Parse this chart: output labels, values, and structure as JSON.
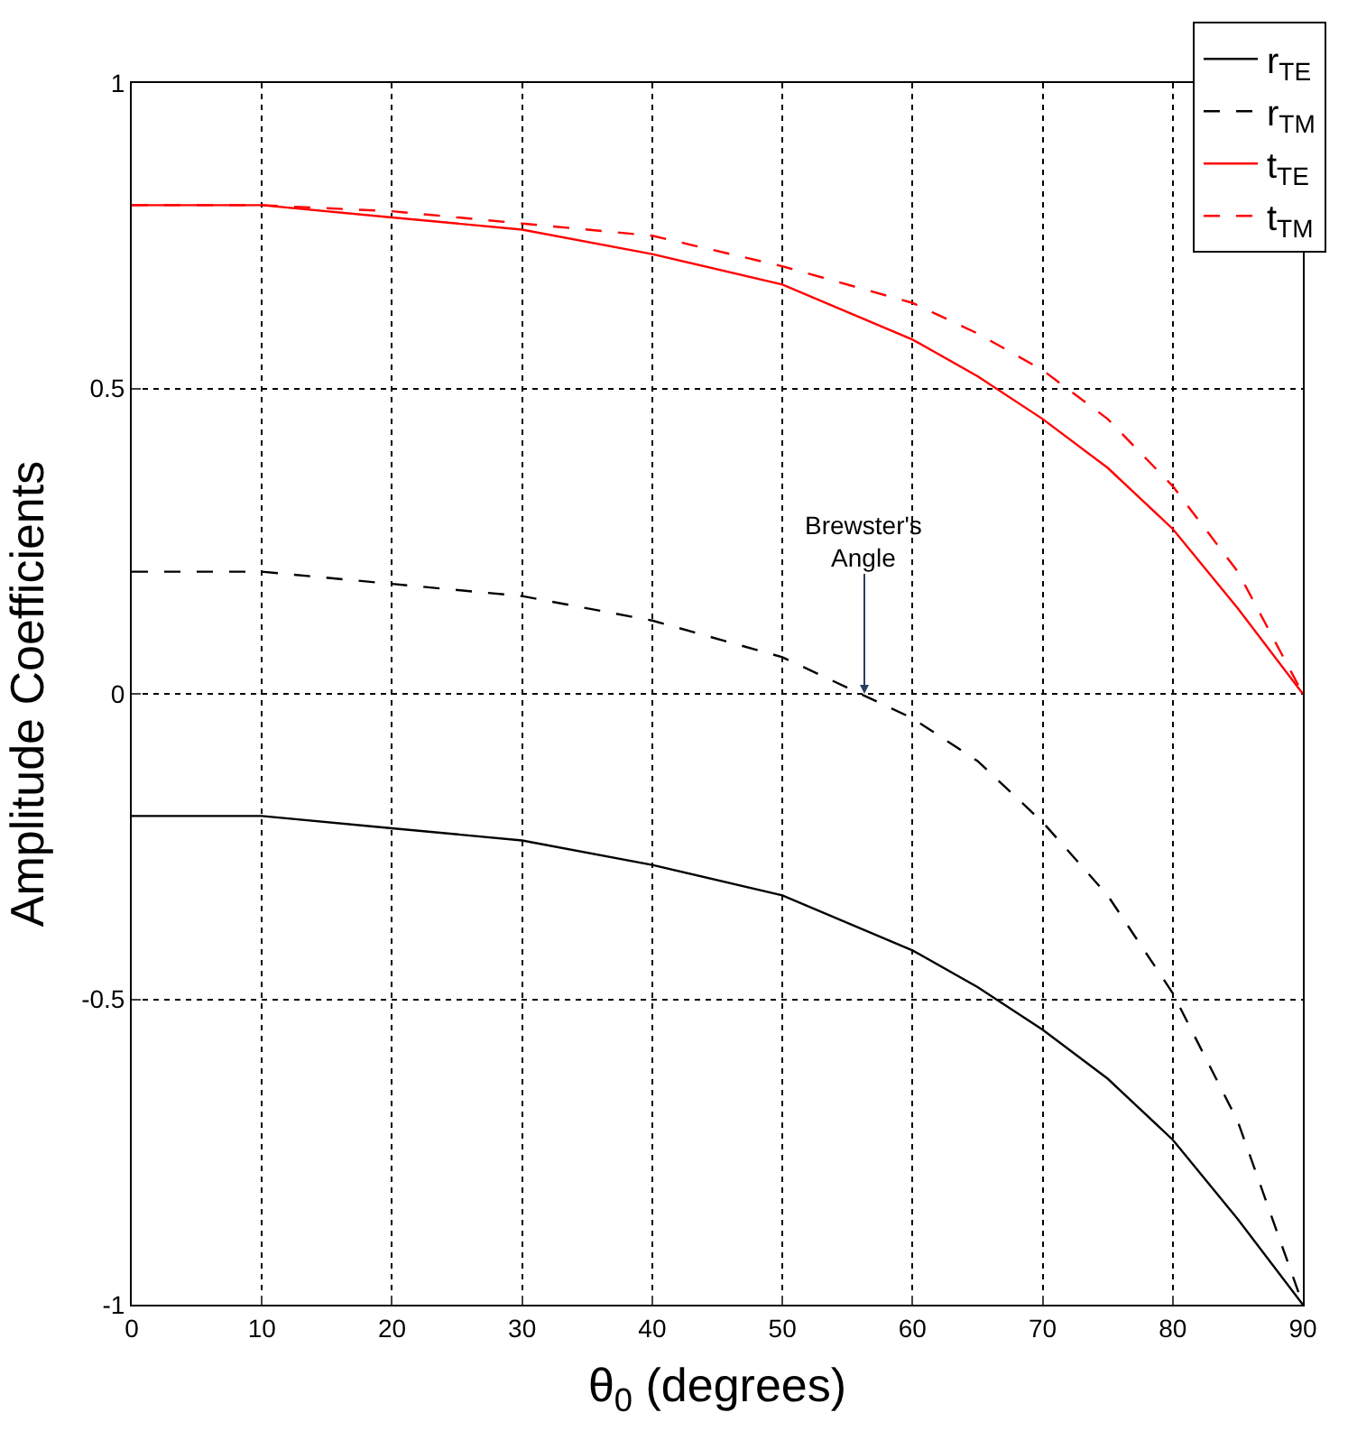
{
  "chart_data": {
    "type": "line",
    "xlabel": "θ$_{0}$ (degrees)",
    "ylabel": "Amplitude Coefficients",
    "x": [
      0,
      10,
      20,
      30,
      40,
      50,
      60,
      65,
      70,
      75,
      80,
      85,
      90
    ],
    "series": [
      {
        "name": "r$_{TE}$",
        "color": "#000000",
        "line_style": "solid",
        "values": [
          -0.2,
          -0.2,
          -0.22,
          -0.24,
          -0.28,
          -0.33,
          -0.42,
          -0.48,
          -0.55,
          -0.63,
          -0.73,
          -0.86,
          -1.0
        ]
      },
      {
        "name": "r$_{TM}$",
        "color": "#000000",
        "line_style": "dashed",
        "values": [
          0.2,
          0.2,
          0.18,
          0.16,
          0.12,
          0.06,
          -0.04,
          -0.11,
          -0.21,
          -0.33,
          -0.49,
          -0.7,
          -1.0
        ]
      },
      {
        "name": "t$_{TE}$",
        "color": "#ff0000",
        "line_style": "solid",
        "values": [
          0.8,
          0.8,
          0.78,
          0.76,
          0.72,
          0.67,
          0.58,
          0.52,
          0.45,
          0.37,
          0.27,
          0.14,
          0.0
        ]
      },
      {
        "name": "t$_{TM}$",
        "color": "#ff0000",
        "line_style": "dashed",
        "values": [
          0.8,
          0.8,
          0.79,
          0.77,
          0.75,
          0.7,
          0.64,
          0.59,
          0.53,
          0.45,
          0.34,
          0.2,
          0.0
        ]
      }
    ],
    "xlim": [
      0,
      90
    ],
    "xticks": [
      0,
      10,
      20,
      30,
      40,
      50,
      60,
      70,
      80,
      90
    ],
    "ylim": [
      -1,
      1
    ],
    "yticks": [
      -1,
      -0.5,
      0,
      0.5,
      1
    ],
    "annotations": [
      {
        "text": "Brewster's\nAngle",
        "x": 56.3,
        "y": 0
      }
    ],
    "grid": true,
    "legend": "top right",
    "marker": "none"
  }
}
